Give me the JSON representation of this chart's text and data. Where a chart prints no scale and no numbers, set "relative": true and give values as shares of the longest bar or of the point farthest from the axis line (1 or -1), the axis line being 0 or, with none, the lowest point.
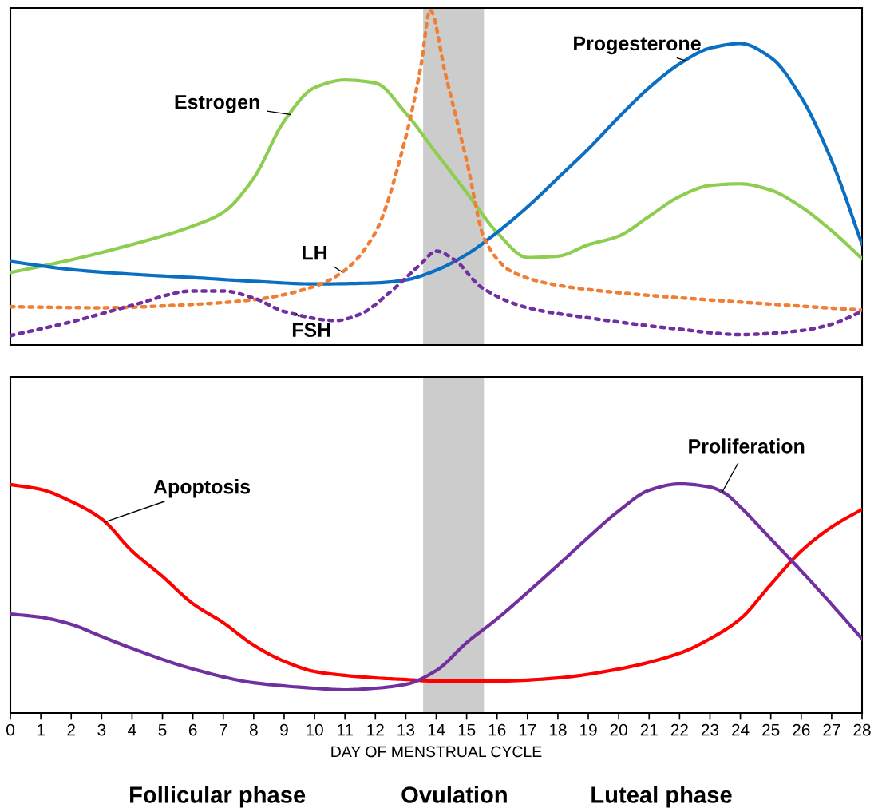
{
  "chart_data": [
    {
      "type": "line",
      "relative": true,
      "xlim": [
        0,
        28
      ],
      "tick_labels": false,
      "grid": false,
      "bands": [
        {
          "axis": "x",
          "from": 13.57,
          "to": 15.57,
          "color": "#cccccc"
        }
      ],
      "series": [
        {
          "name": "Estrogen",
          "color": "#8dce50",
          "line_style": "solid",
          "x": [
            0,
            2,
            4,
            6,
            7,
            8,
            9,
            10,
            11,
            12,
            13,
            14,
            15,
            16,
            17,
            18,
            19,
            20,
            21,
            22,
            23,
            24,
            25,
            26,
            27,
            28
          ],
          "values": [
            0.216,
            0.254,
            0.3,
            0.355,
            0.396,
            0.498,
            0.668,
            0.768,
            0.791,
            0.782,
            0.692,
            0.573,
            0.455,
            0.336,
            0.261,
            0.265,
            0.299,
            0.325,
            0.384,
            0.443,
            0.476,
            0.481,
            0.462,
            0.412,
            0.341,
            0.258
          ]
        },
        {
          "name": "Progesterone",
          "color": "#0a6fc2",
          "line_style": "solid",
          "x": [
            0,
            2,
            4,
            6,
            8,
            10,
            12,
            13,
            14,
            15,
            16,
            17,
            18,
            19,
            20,
            21,
            22,
            23,
            24,
            25,
            26,
            27,
            28
          ],
          "values": [
            0.249,
            0.225,
            0.211,
            0.201,
            0.19,
            0.182,
            0.185,
            0.194,
            0.223,
            0.27,
            0.336,
            0.412,
            0.498,
            0.585,
            0.68,
            0.768,
            0.839,
            0.886,
            0.9,
            0.858,
            0.739,
            0.55,
            0.301
          ]
        },
        {
          "name": "LH",
          "color": "#f07f35",
          "line_style": "dotted",
          "x": [
            0,
            3,
            6,
            8,
            10,
            11,
            12,
            13,
            13.5,
            13.8,
            14.3,
            15,
            15.6,
            16.5,
            18,
            20,
            24,
            28
          ],
          "values": [
            0.114,
            0.111,
            0.121,
            0.135,
            0.175,
            0.223,
            0.336,
            0.621,
            0.834,
            1.0,
            0.81,
            0.55,
            0.313,
            0.218,
            0.178,
            0.156,
            0.128,
            0.104
          ]
        },
        {
          "name": "FSH",
          "color": "#7030a0",
          "line_style": "dotted",
          "x": [
            0,
            2,
            4,
            6,
            7,
            8,
            9,
            10.7,
            11.5,
            12.5,
            13.5,
            14,
            14.6,
            15.5,
            17,
            19,
            22,
            24,
            26,
            27,
            28
          ],
          "values": [
            0.028,
            0.069,
            0.118,
            0.161,
            0.161,
            0.14,
            0.1,
            0.073,
            0.092,
            0.159,
            0.242,
            0.28,
            0.254,
            0.171,
            0.111,
            0.081,
            0.047,
            0.031,
            0.043,
            0.062,
            0.1
          ]
        }
      ]
    },
    {
      "type": "line",
      "relative": true,
      "xlim": [
        0,
        28
      ],
      "xticks": [
        0,
        1,
        2,
        3,
        4,
        5,
        6,
        7,
        8,
        9,
        10,
        11,
        12,
        13,
        14,
        15,
        16,
        17,
        18,
        19,
        20,
        21,
        22,
        23,
        24,
        25,
        26,
        27,
        28
      ],
      "tick_labels": "x",
      "grid": false,
      "xlabel": "DAY OF MENSTRUAL CYCLE",
      "annotations": [
        "Follicular phase",
        "Ovulation",
        "Luteal phase"
      ],
      "bands": [
        {
          "axis": "x",
          "from": 13.57,
          "to": 15.57,
          "color": "#cccccc"
        }
      ],
      "series": [
        {
          "name": "Apoptosis",
          "color": "#ff0000",
          "line_style": "solid",
          "x": [
            0,
            1,
            2,
            3,
            4,
            5,
            6,
            7,
            8,
            9,
            10,
            11,
            12,
            13,
            14,
            16,
            18,
            20,
            22,
            23,
            24,
            25,
            26,
            27,
            28
          ],
          "values": [
            0.997,
            0.976,
            0.923,
            0.847,
            0.707,
            0.596,
            0.477,
            0.394,
            0.296,
            0.226,
            0.181,
            0.164,
            0.153,
            0.146,
            0.139,
            0.139,
            0.153,
            0.192,
            0.261,
            0.324,
            0.411,
            0.561,
            0.707,
            0.812,
            0.889
          ]
        },
        {
          "name": "Proliferation",
          "color": "#7030a0",
          "line_style": "solid",
          "x": [
            0,
            1,
            2,
            3,
            4,
            6,
            8,
            10,
            11,
            12,
            13,
            14,
            15,
            16,
            17,
            18,
            19,
            20,
            21,
            22,
            23,
            23.5,
            24,
            25,
            26,
            27,
            28
          ],
          "values": [
            0.432,
            0.418,
            0.387,
            0.334,
            0.282,
            0.192,
            0.132,
            0.108,
            0.101,
            0.108,
            0.125,
            0.185,
            0.307,
            0.411,
            0.526,
            0.645,
            0.767,
            0.882,
            0.972,
            1.0,
            0.986,
            0.958,
            0.899,
            0.76,
            0.62,
            0.474,
            0.324
          ]
        }
      ]
    }
  ]
}
